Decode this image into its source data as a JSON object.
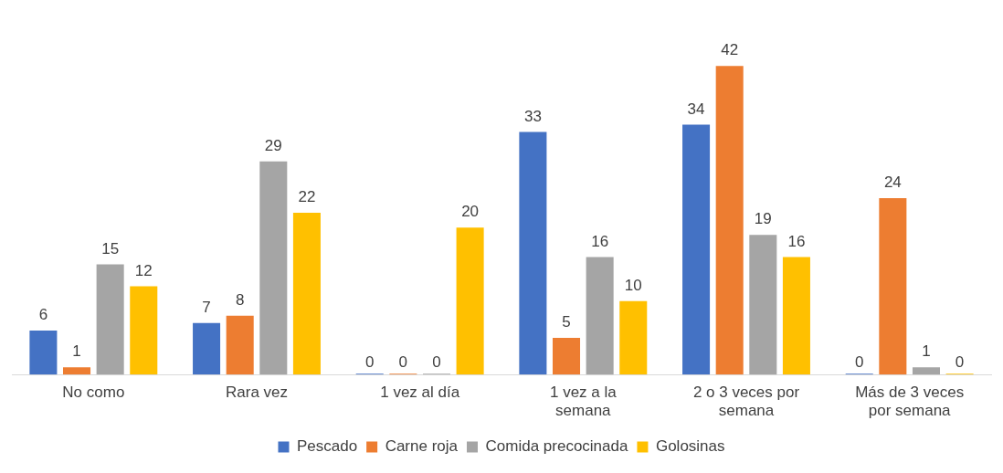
{
  "chart_data": {
    "type": "bar",
    "categories": [
      "No como",
      "Rara vez",
      "1 vez al día",
      "1 vez a la semana",
      "2 o 3 veces por semana",
      "Más de 3 veces por semana"
    ],
    "series": [
      {
        "name": "Pescado",
        "color": "#4472c4",
        "values": [
          6,
          7,
          0,
          33,
          34,
          0
        ]
      },
      {
        "name": "Carne roja",
        "color": "#ed7d31",
        "values": [
          1,
          8,
          0,
          5,
          42,
          24
        ]
      },
      {
        "name": "Comida precocinada",
        "color": "#a5a5a5",
        "values": [
          15,
          29,
          0,
          16,
          19,
          1
        ]
      },
      {
        "name": "Golosinas",
        "color": "#ffc000",
        "values": [
          12,
          22,
          20,
          10,
          16,
          0
        ]
      }
    ],
    "data_labels": true,
    "legend": "bottom",
    "grid": false
  }
}
